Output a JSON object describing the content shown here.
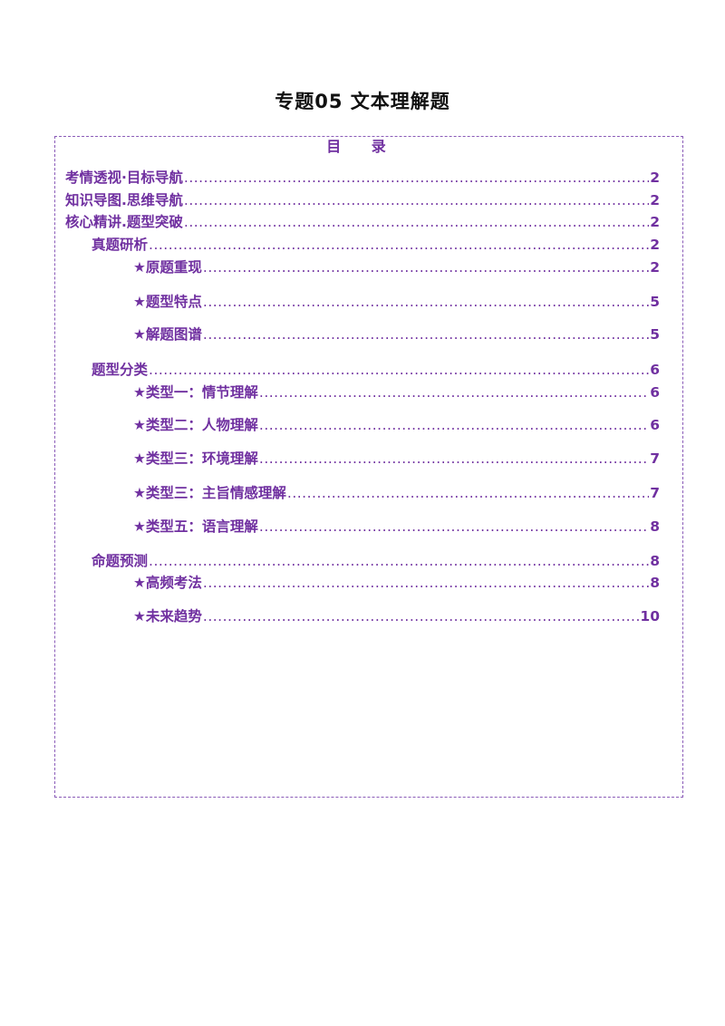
{
  "document": {
    "title": "专题05  文本理解题"
  },
  "toc": {
    "heading": "目  录",
    "entries": [
      {
        "label": "考情透视·目标导航",
        "page": "2"
      },
      {
        "label": "知识导图.思维导航",
        "page": "2"
      },
      {
        "label": "核心精讲.题型突破",
        "page": "2"
      },
      {
        "label": "真题研析",
        "page": "2"
      },
      {
        "label": "★原题重现",
        "page": "2"
      },
      {
        "label": "★题型特点",
        "page": "5"
      },
      {
        "label": "★解题图谱",
        "page": "5"
      },
      {
        "label": "题型分类",
        "page": "6"
      },
      {
        "label": "★类型一：情节理解",
        "page": "6"
      },
      {
        "label": "★类型二：人物理解",
        "page": "6"
      },
      {
        "label": "★类型三：环境理解",
        "page": "7"
      },
      {
        "label": "★类型三：主旨情感理解",
        "page": "7"
      },
      {
        "label": "★类型五：语言理解",
        "page": "8"
      },
      {
        "label": "命题预测",
        "page": "8"
      },
      {
        "label": "★高频考法",
        "page": "8"
      },
      {
        "label": "★未来趋势",
        "page": "10"
      }
    ]
  },
  "colors": {
    "accent": "#7030a0",
    "title": "#111111",
    "border": "#8a5bb8"
  }
}
